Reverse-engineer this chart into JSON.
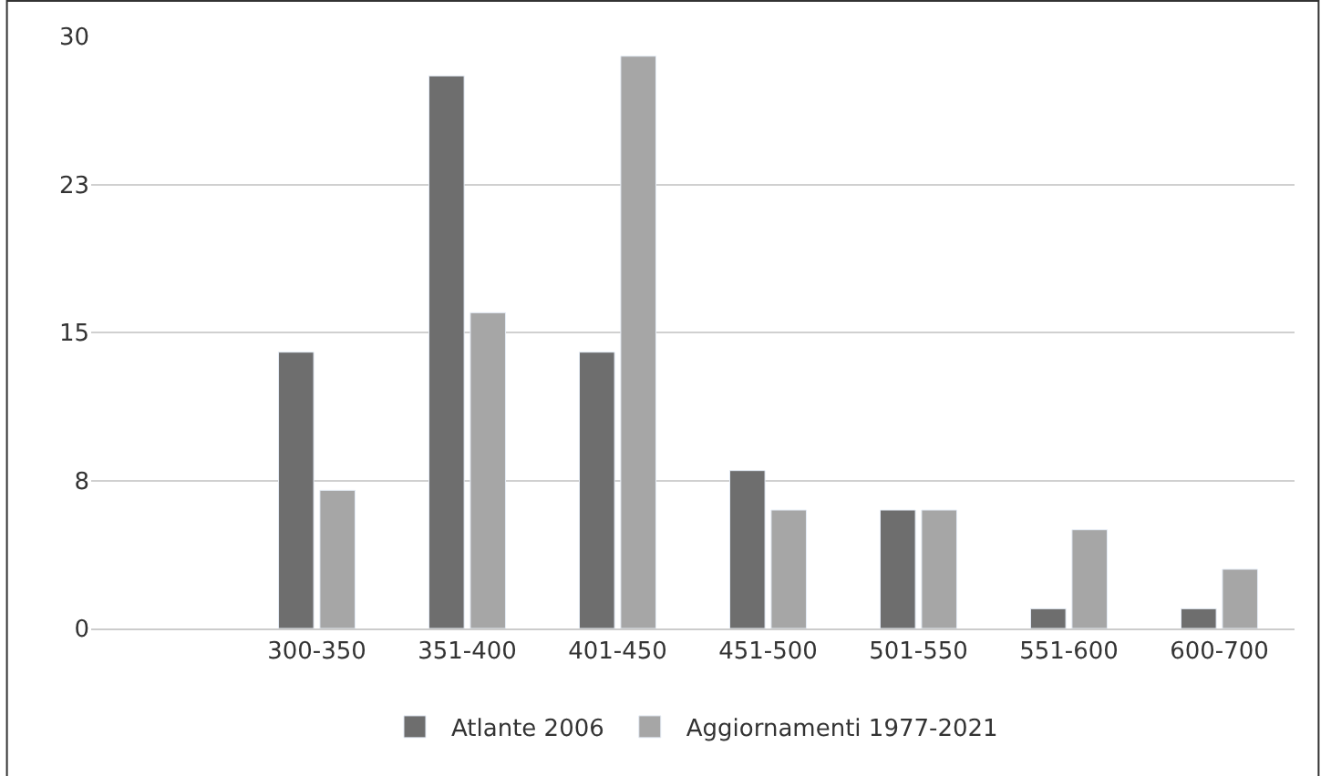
{
  "chart_data": {
    "type": "bar",
    "categories": [
      null,
      "300-350",
      "351-400",
      "401-450",
      "451-500",
      "501-550",
      "551-600",
      "600-700"
    ],
    "series": [
      {
        "name": "Atlante 2006",
        "color": "#6e6e6e",
        "values": [
          null,
          14,
          28,
          14,
          8,
          6,
          1,
          1
        ]
      },
      {
        "name": "Aggiornamenti 1977-2021",
        "color": "#a6a6a6",
        "values": [
          null,
          7,
          16,
          29,
          6,
          6,
          5,
          3
        ]
      }
    ],
    "ylim": [
      0,
      30
    ],
    "yticks": [
      0,
      {
        "value": 7.5,
        "label": "8"
      },
      15,
      {
        "value": 22.5,
        "label": "23"
      },
      30
    ],
    "grid": "y",
    "legend": "bottom"
  }
}
